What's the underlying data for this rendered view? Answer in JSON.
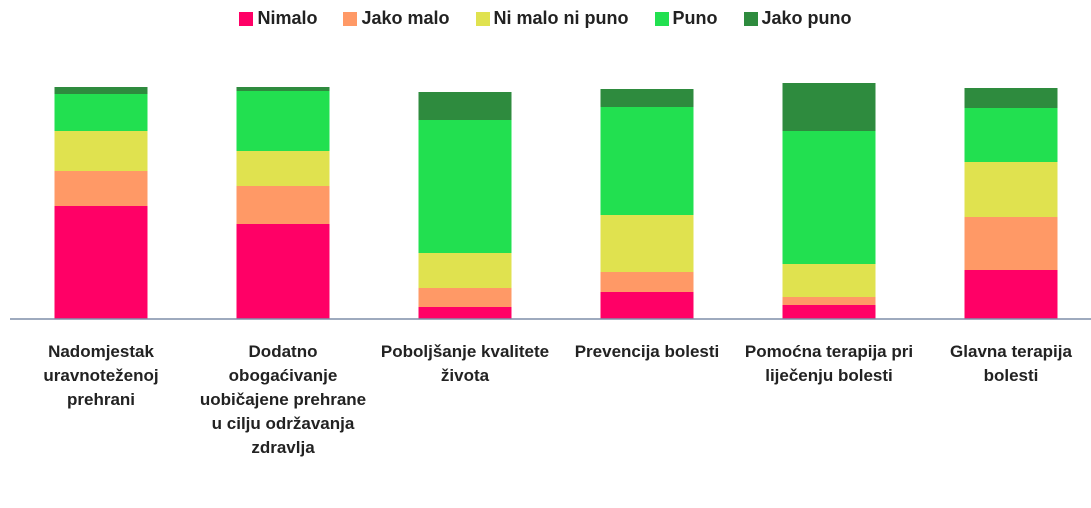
{
  "chart_data": {
    "type": "stacked_bar",
    "categories": [
      "Nadomjestak uravnoteženoj prehrani",
      "Dodatno obogaćivanje uobičajene prehrane u cilju održavanja zdravlja",
      "Poboljšanje kvalitete života",
      "Prevencija bolesti",
      "Pomoćna terapija pri liječenju bolesti",
      "Glavna terapija bolesti"
    ],
    "series": [
      {
        "name": "Nimalo",
        "color": "#ff0066",
        "values": [
          113,
          95,
          12,
          27,
          14,
          49
        ]
      },
      {
        "name": "Jako malo",
        "color": "#ff9966",
        "values": [
          35,
          38,
          19,
          20,
          8,
          53
        ]
      },
      {
        "name": "Ni malo ni puno",
        "color": "#e0e24f",
        "values": [
          40,
          35,
          35,
          57,
          33,
          55
        ]
      },
      {
        "name": "Puno",
        "color": "#22e050",
        "values": [
          37,
          60,
          133,
          108,
          133,
          54
        ]
      },
      {
        "name": "Jako puno",
        "color": "#2e8b3e",
        "values": [
          7,
          4,
          28,
          18,
          48,
          20
        ]
      }
    ],
    "ylim": [
      0,
      240
    ],
    "legend": "top"
  }
}
